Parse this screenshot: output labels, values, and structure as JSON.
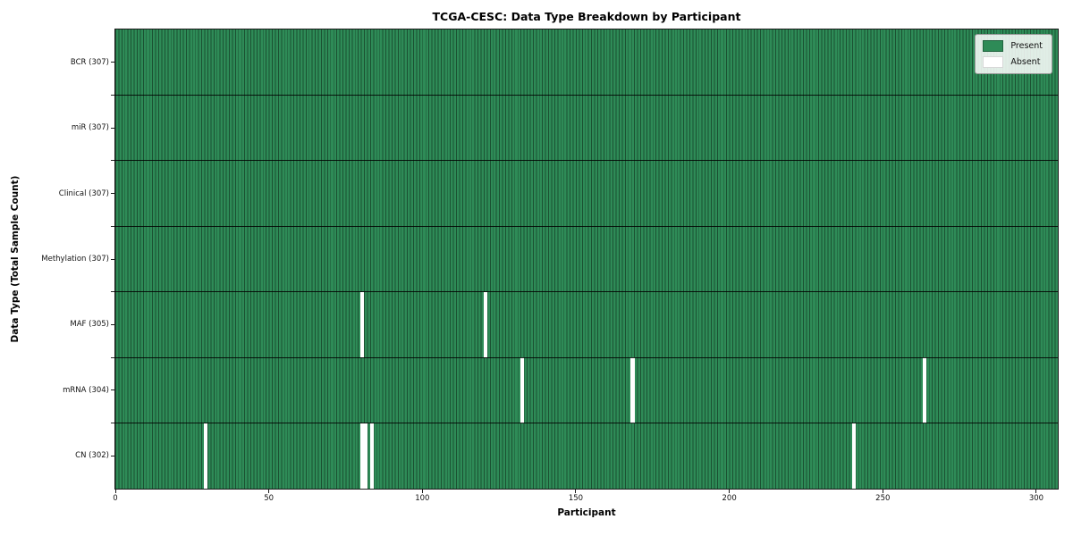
{
  "chart_data": {
    "type": "heatmap",
    "title": "TCGA-CESC: Data Type Breakdown by Participant",
    "xlabel": "Participant",
    "ylabel": "Data Type (Total Sample Count)",
    "x_range": [
      0,
      307
    ],
    "x_ticks": [
      0,
      50,
      100,
      150,
      200,
      250,
      300
    ],
    "n_participants": 307,
    "grid": false,
    "legend_position": "upper right",
    "legend": [
      {
        "label": "Present",
        "value": "present"
      },
      {
        "label": "Absent",
        "value": "absent"
      }
    ],
    "colors": {
      "present": "#2e8b57",
      "absent": "#ffffff",
      "cell_border_overlay": "rgba(0,0,0,0.42)",
      "row_divider": "rgba(0,0,0,0.85)",
      "plot_border": "#1a1a1a",
      "legend_bg": "rgba(255,255,255,0.85)",
      "legend_border": "#9a9a9a"
    },
    "rows": [
      {
        "data_type": "BCR",
        "label": "BCR (307)",
        "total": 307,
        "absent_participants": []
      },
      {
        "data_type": "miR",
        "label": "miR (307)",
        "total": 307,
        "absent_participants": []
      },
      {
        "data_type": "Clinical",
        "label": "Clinical (307)",
        "total": 307,
        "absent_participants": []
      },
      {
        "data_type": "Methylation",
        "label": "Methylation (307)",
        "total": 307,
        "absent_participants": []
      },
      {
        "data_type": "MAF",
        "label": "MAF (305)",
        "total": 305,
        "absent_participants": [
          80,
          120
        ]
      },
      {
        "data_type": "mRNA",
        "label": "mRNA (304)",
        "total": 304,
        "absent_participants": [
          132,
          168,
          263
        ]
      },
      {
        "data_type": "CN",
        "label": "CN (302)",
        "total": 302,
        "absent_participants": [
          29,
          80,
          81,
          83,
          240
        ]
      }
    ]
  }
}
